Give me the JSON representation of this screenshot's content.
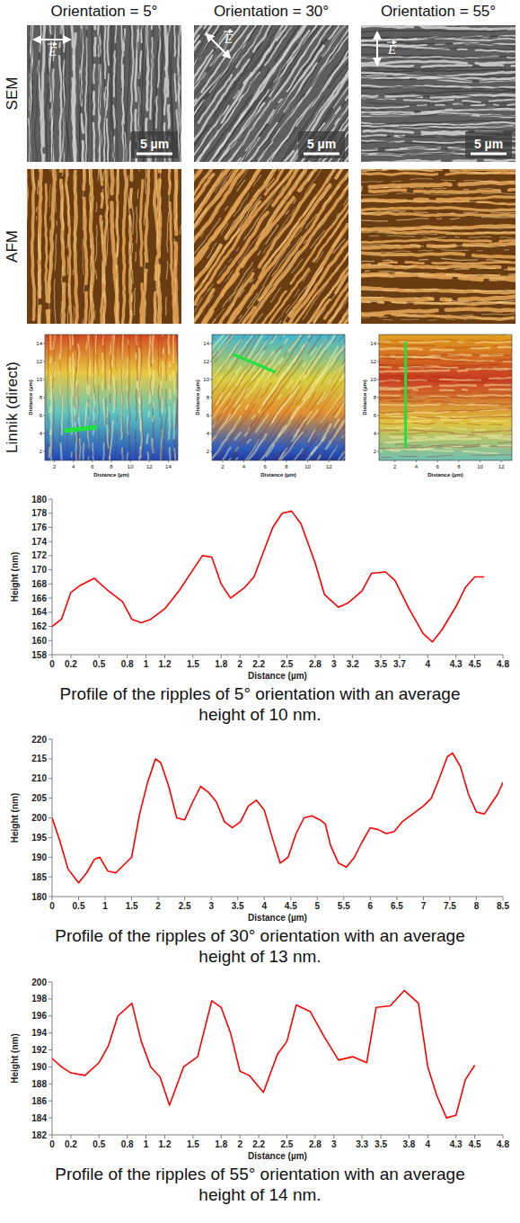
{
  "figure": {
    "columns": [
      {
        "title": "Orientation = 5°",
        "field_label": "E",
        "scale_bar": "5 µm",
        "linnik": {
          "xlim": [
            1,
            15
          ],
          "ylim": [
            1,
            15
          ],
          "xticks": [
            2,
            4,
            6,
            8,
            10,
            12,
            14
          ],
          "yticks": [
            2,
            4,
            6,
            8,
            10,
            12,
            14
          ]
        }
      },
      {
        "title": "Orientation = 30°",
        "field_label": "E",
        "scale_bar": "5 µm",
        "linnik": {
          "xlim": [
            1,
            13.5
          ],
          "ylim": [
            1,
            15
          ],
          "xticks": [
            2,
            4,
            6,
            8,
            10,
            12
          ],
          "yticks": [
            2,
            4,
            6,
            8,
            10,
            12,
            14
          ]
        }
      },
      {
        "title": "Orientation = 55°",
        "field_label": "E",
        "scale_bar": "5 µm",
        "linnik": {
          "xlim": [
            0.5,
            13
          ],
          "ylim": [
            1,
            15
          ],
          "xticks": [
            2,
            4,
            6,
            8,
            10,
            12
          ],
          "yticks": [
            2,
            4,
            6,
            8,
            10,
            12,
            14
          ]
        }
      }
    ],
    "rows": [
      "SEM",
      "AFM",
      "Linnik (direct)"
    ],
    "linnik_axis_label": "Distance (µm)"
  },
  "chart_data": [
    {
      "type": "line",
      "caption": "Profile of the ripples of 5° orientation with an average height of 10 nm.",
      "x_label": "Distance (µm)",
      "y_label": "Height (nm)",
      "color": "#ff0000",
      "grid": false,
      "x": [
        0,
        0.1,
        0.2,
        0.3,
        0.45,
        0.6,
        0.75,
        0.85,
        0.95,
        1.05,
        1.2,
        1.35,
        1.5,
        1.6,
        1.7,
        1.8,
        1.9,
        2.05,
        2.15,
        2.25,
        2.35,
        2.45,
        2.55,
        2.65,
        2.8,
        2.9,
        3.05,
        3.15,
        3.3,
        3.4,
        3.55,
        3.65,
        3.8,
        3.95,
        4.05,
        4.15,
        4.3,
        4.4,
        4.5,
        4.6
      ],
      "values": [
        162,
        163,
        166.8,
        167.8,
        168.8,
        167,
        165.5,
        163,
        162.5,
        163,
        164.5,
        167,
        170,
        172,
        171.8,
        168,
        166,
        167.5,
        169,
        172.5,
        176,
        178,
        178.3,
        176.5,
        171,
        166.5,
        164.7,
        165.3,
        167,
        169.5,
        169.7,
        168.5,
        164.5,
        161,
        159.8,
        161.5,
        164.8,
        167.5,
        169,
        169
      ],
      "xlim": [
        0,
        4.8
      ],
      "xticks": [
        0,
        0.2,
        0.5,
        0.8,
        1,
        1.2,
        1.5,
        1.8,
        2,
        2.2,
        2.5,
        2.8,
        3,
        3.2,
        3.5,
        3.7,
        4,
        4.3,
        4.5,
        4.8
      ],
      "ylim": [
        158,
        180
      ],
      "yticks": [
        158,
        160,
        162,
        164,
        166,
        168,
        170,
        172,
        174,
        176,
        178,
        180
      ]
    },
    {
      "type": "line",
      "caption": "Profile of the ripples of 30° orientation with an average height of 13 nm.",
      "x_label": "Distance (µm)",
      "y_label": "Height (nm)",
      "color": "#ff0000",
      "grid": false,
      "x": [
        0,
        0.15,
        0.3,
        0.5,
        0.65,
        0.8,
        0.9,
        1.05,
        1.2,
        1.35,
        1.5,
        1.65,
        1.8,
        1.95,
        2.05,
        2.2,
        2.35,
        2.5,
        2.65,
        2.8,
        2.95,
        3.1,
        3.25,
        3.4,
        3.55,
        3.7,
        3.85,
        4.0,
        4.15,
        4.3,
        4.45,
        4.6,
        4.75,
        4.9,
        5.05,
        5.15,
        5.25,
        5.4,
        5.55,
        5.7,
        5.85,
        6.0,
        6.15,
        6.3,
        6.45,
        6.6,
        6.8,
        7.0,
        7.15,
        7.3,
        7.45,
        7.55,
        7.7,
        7.85,
        8.0,
        8.15,
        8.3,
        8.4,
        8.5
      ],
      "values": [
        200,
        194,
        187,
        183.5,
        186,
        189.5,
        190,
        186.5,
        186,
        188,
        190,
        201,
        209,
        215,
        214,
        208,
        200,
        199.5,
        204,
        208,
        206.5,
        204,
        199,
        197.5,
        199,
        203,
        204.5,
        202,
        195,
        188.5,
        190,
        196,
        200,
        200.5,
        199.5,
        198.5,
        193,
        188.5,
        187.5,
        190,
        194,
        197.5,
        197,
        196,
        196.5,
        199,
        201,
        203,
        205,
        210,
        215.5,
        216.5,
        213,
        206,
        201.5,
        201,
        204,
        206,
        209
      ],
      "xlim": [
        0,
        8.5
      ],
      "xticks": [
        0,
        0.5,
        1,
        1.5,
        2,
        2.5,
        3,
        3.5,
        4,
        4.5,
        5,
        5.5,
        6,
        6.5,
        7,
        7.5,
        8,
        8.5
      ],
      "ylim": [
        180,
        220
      ],
      "yticks": [
        180,
        185,
        190,
        195,
        200,
        205,
        210,
        215,
        220
      ]
    },
    {
      "type": "line",
      "caption": "Profile of the ripples of 55° orientation with an average height of 14 nm.",
      "x_label": "Distance (µm)",
      "y_label": "Height (nm)",
      "color": "#ff0000",
      "grid": false,
      "x": [
        0,
        0.1,
        0.2,
        0.35,
        0.5,
        0.6,
        0.7,
        0.85,
        0.95,
        1.05,
        1.15,
        1.25,
        1.4,
        1.55,
        1.7,
        1.8,
        1.9,
        2.0,
        2.1,
        2.25,
        2.4,
        2.5,
        2.6,
        2.75,
        2.9,
        3.05,
        3.2,
        3.35,
        3.45,
        3.6,
        3.75,
        3.9,
        4.0,
        4.1,
        4.2,
        4.3,
        4.4,
        4.5
      ],
      "values": [
        191,
        190,
        189.3,
        189,
        190.5,
        192.5,
        196,
        197.5,
        193,
        190,
        188.8,
        185.5,
        190,
        191.2,
        197.8,
        197,
        194,
        189.5,
        189,
        187,
        191.5,
        193,
        197.3,
        196.5,
        193.5,
        190.8,
        191.2,
        190.5,
        197,
        197.2,
        199,
        197.5,
        190,
        186.5,
        184,
        184.3,
        188.5,
        190.2
      ],
      "xlim": [
        0,
        4.8
      ],
      "xticks": [
        0,
        0.2,
        0.5,
        0.8,
        1,
        1.2,
        1.5,
        1.8,
        2,
        2.2,
        2.5,
        2.8,
        3,
        3.3,
        3.5,
        3.8,
        4,
        4.3,
        4.5,
        4.8
      ],
      "ylim": [
        182,
        200
      ],
      "yticks": [
        182,
        184,
        186,
        188,
        190,
        192,
        194,
        196,
        198,
        200
      ]
    }
  ]
}
